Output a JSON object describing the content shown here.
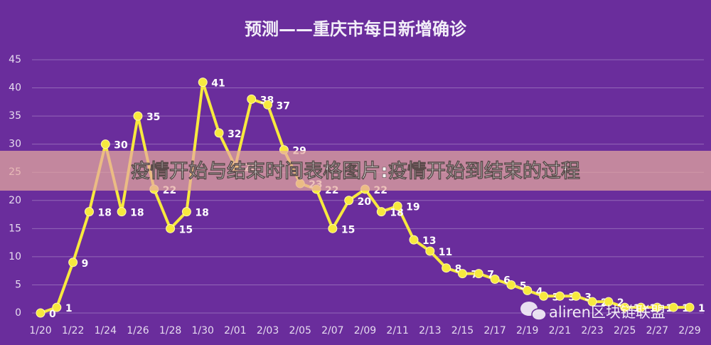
{
  "chart_data": {
    "type": "line",
    "title": "预测——重庆市每日新增确诊",
    "categories": [
      "1/20",
      null,
      "1/22",
      null,
      "1/24",
      null,
      "1/26",
      null,
      "1/28",
      null,
      "1/30",
      null,
      "2/01",
      null,
      "2/03",
      null,
      "2/05",
      null,
      "2/07",
      null,
      "2/09",
      null,
      "2/11",
      null,
      "2/13",
      null,
      "2/15",
      null,
      "2/17",
      null,
      "2/19",
      null,
      "2/21",
      null,
      "2/23",
      null,
      "2/25",
      null,
      "2/27",
      null,
      "2/29"
    ],
    "series": [
      {
        "color": "#f7e93e",
        "values": [
          0,
          1,
          9,
          18,
          30,
          18,
          35,
          22,
          15,
          18,
          41,
          32,
          26,
          38,
          37,
          29,
          23,
          22,
          15,
          20,
          22,
          18,
          19,
          13,
          11,
          8,
          7,
          7,
          6,
          5,
          4,
          3,
          3,
          3,
          2,
          2,
          1,
          1,
          1,
          1,
          1
        ]
      }
    ],
    "ylim": [
      0,
      45
    ],
    "yticks": [
      0,
      5,
      10,
      15,
      20,
      25,
      30,
      35,
      40,
      45
    ],
    "grid": true
  },
  "overlay": {
    "banner": "疫情开始与结束时间表格图片:疫情开始到结束的过程",
    "watermark": "aliren区块链联盟"
  }
}
